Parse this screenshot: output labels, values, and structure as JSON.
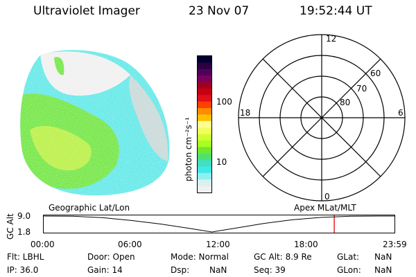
{
  "header": {
    "title": "Ultraviolet Imager",
    "date": "23 Nov 07",
    "time": "19:52:44 UT"
  },
  "colorbar": {
    "label": "photon cm⁻²s⁻¹",
    "ticks": [
      "100",
      "10"
    ],
    "colors": [
      "#000033",
      "#2a0040",
      "#50005a",
      "#7a0060",
      "#a00020",
      "#c80010",
      "#e0101a",
      "#ff4000",
      "#ff8c00",
      "#ffc000",
      "#ffff90",
      "#f0ff60",
      "#d0ff30",
      "#a8ff20",
      "#70e830",
      "#50e070",
      "#40e0c0",
      "#40e8e8",
      "#90f0f0",
      "#d8f0f0",
      "#f0f0f0"
    ]
  },
  "polar": {
    "labels": {
      "top": "12",
      "left": "18",
      "right": "6",
      "bottom": "0"
    },
    "ring_labels": [
      "60",
      "70",
      "80"
    ]
  },
  "image": {
    "palette": {
      "cyan": "#60e8e8",
      "green": "#70e640",
      "yellowgreen": "#b8f040",
      "white": "#f0f0f0",
      "gray": "#c8d8d8"
    }
  },
  "chart_data": {
    "type": "line",
    "title": "",
    "left_label": "Geographic Lat/Lon",
    "right_label": "Apex MLat/MLT",
    "ylabel": "GC Alt",
    "yticks": [
      "9.0",
      "1.8"
    ],
    "ylim": [
      1.8,
      9.0
    ],
    "xticks": [
      "00:00",
      "06:00",
      "12:00",
      "18:00",
      "23:59"
    ],
    "xlim_hours": [
      0,
      24
    ],
    "x_hours": [
      0,
      2,
      4,
      6,
      8,
      10,
      11.5,
      13,
      15,
      17,
      19,
      21,
      23,
      24
    ],
    "y": [
      9.0,
      8.9,
      8.3,
      7.0,
      5.4,
      3.4,
      1.8,
      3.4,
      5.6,
      7.3,
      8.4,
      8.9,
      9.0,
      9.0
    ],
    "marker_hour": 19.88,
    "marker_color": "#e00000"
  },
  "footer": {
    "rows": [
      [
        "Flt: LBHL",
        "Door: Open",
        "Mode: Normal",
        "GC Alt: 8.9 Re",
        "GLat:",
        "NaN"
      ],
      [
        "IP: 36.0",
        "Gain: 14",
        "Dsp:",
        "NaN",
        "Seq: 39",
        "GLon:",
        "NaN"
      ]
    ]
  }
}
